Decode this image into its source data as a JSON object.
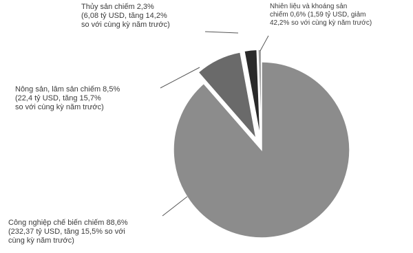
{
  "chart_data": {
    "type": "pie",
    "title": "",
    "slices": [
      {
        "label": "Công nghiệp chế biến",
        "value": 88.6,
        "color": "#8c8c8c",
        "exploded": false
      },
      {
        "label": "Nông sản, lâm sản",
        "value": 8.5,
        "color": "#6a6a6a",
        "exploded": true
      },
      {
        "label": "Thủy sản",
        "value": 2.3,
        "color": "#2a2a2a",
        "exploded": true
      },
      {
        "label": "Nhiên liệu và khoáng sản",
        "value": 0.6,
        "color": "#9a9a9a",
        "exploded": true
      }
    ],
    "annotations": [
      "Thủy sản chiếm 2,3%\n(6,08 tỷ USD, tăng 14,2%\nso với cùng kỳ năm trước)",
      "Nhiên liệu và khoáng sản\nchiếm 0,6% (1,59 tỷ USD, giảm\n42,2% so với cùng kỳ năm trước)",
      "Nông sản, lâm sản chiếm 8,5%\n(22,4 tỷ USD, tăng 15,7%\nso với cùng kỳ năm trước)",
      "Công nghiệp chế biến chiếm 88,6%\n(232,37 tỷ USD, tăng 15,5% so với\ncùng kỳ năm trước)"
    ]
  }
}
